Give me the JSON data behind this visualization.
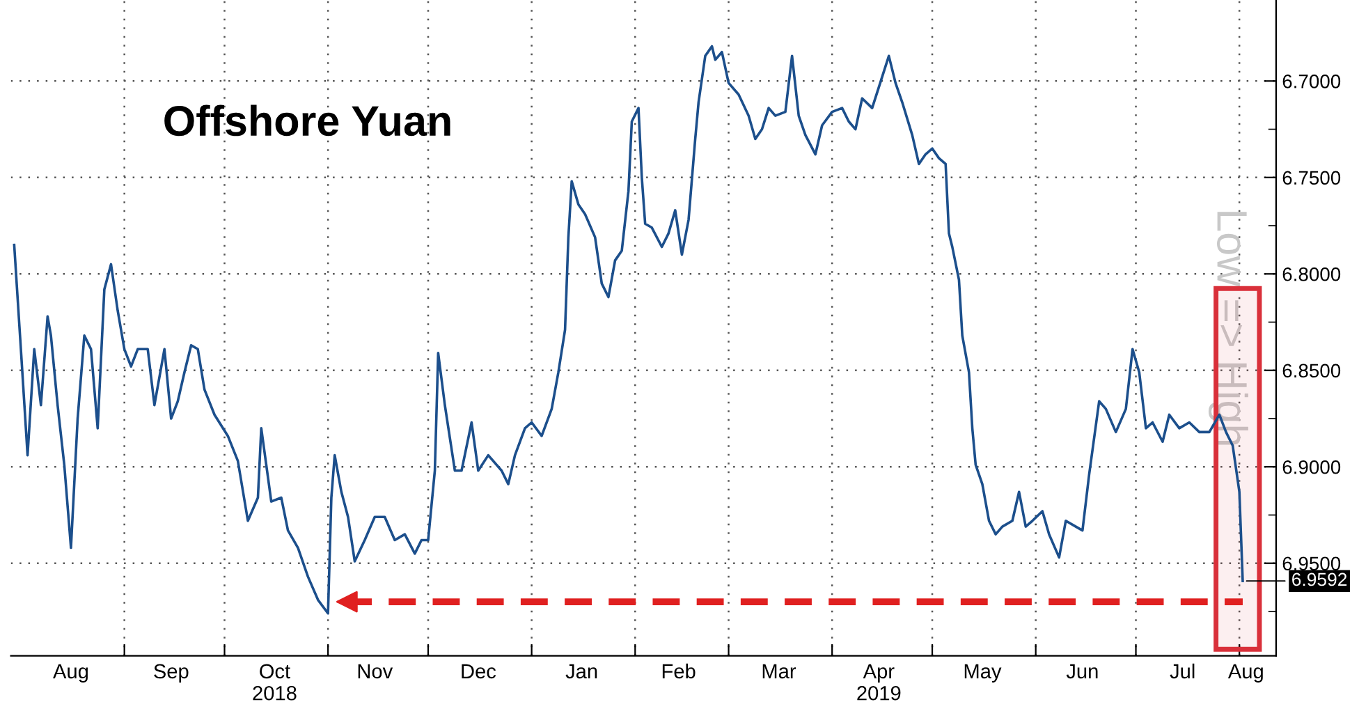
{
  "chart_data": {
    "type": "line",
    "title": "Offshore Yuan",
    "ylabel": "Low => High",
    "x": [
      "2018-07-30",
      "2018-08-01",
      "2018-08-03",
      "2018-08-05",
      "2018-08-07",
      "2018-08-09",
      "2018-08-10",
      "2018-08-12",
      "2018-08-14",
      "2018-08-16",
      "2018-08-18",
      "2018-08-20",
      "2018-08-22",
      "2018-08-24",
      "2018-08-26",
      "2018-08-28",
      "2018-08-30",
      "2018-09-01",
      "2018-09-03",
      "2018-09-05",
      "2018-09-08",
      "2018-09-10",
      "2018-09-13",
      "2018-09-15",
      "2018-09-17",
      "2018-09-19",
      "2018-09-21",
      "2018-09-23",
      "2018-09-25",
      "2018-09-28",
      "2018-10-02",
      "2018-10-05",
      "2018-10-08",
      "2018-10-11",
      "2018-10-12",
      "2018-10-15",
      "2018-10-18",
      "2018-10-20",
      "2018-10-23",
      "2018-10-26",
      "2018-10-29",
      "2018-11-01",
      "2018-11-02",
      "2018-11-03",
      "2018-11-05",
      "2018-11-07",
      "2018-11-09",
      "2018-11-12",
      "2018-11-15",
      "2018-11-18",
      "2018-11-21",
      "2018-11-24",
      "2018-11-27",
      "2018-11-29",
      "2018-12-01",
      "2018-12-03",
      "2018-12-04",
      "2018-12-06",
      "2018-12-09",
      "2018-12-11",
      "2018-12-14",
      "2018-12-16",
      "2018-12-19",
      "2018-12-23",
      "2018-12-25",
      "2018-12-27",
      "2018-12-30",
      "2019-01-01",
      "2019-01-04",
      "2019-01-07",
      "2019-01-09",
      "2019-01-11",
      "2019-01-12",
      "2019-01-13",
      "2019-01-15",
      "2019-01-17",
      "2019-01-20",
      "2019-01-22",
      "2019-01-24",
      "2019-01-26",
      "2019-01-28",
      "2019-01-30",
      "2019-01-31",
      "2019-02-02",
      "2019-02-03",
      "2019-02-04",
      "2019-02-06",
      "2019-02-09",
      "2019-02-11",
      "2019-02-13",
      "2019-02-15",
      "2019-02-17",
      "2019-02-19",
      "2019-02-20",
      "2019-02-22",
      "2019-02-24",
      "2019-02-25",
      "2019-02-27",
      "2019-03-01",
      "2019-03-04",
      "2019-03-07",
      "2019-03-09",
      "2019-03-11",
      "2019-03-13",
      "2019-03-15",
      "2019-03-18",
      "2019-03-20",
      "2019-03-22",
      "2019-03-24",
      "2019-03-27",
      "2019-03-29",
      "2019-04-01",
      "2019-04-04",
      "2019-04-06",
      "2019-04-08",
      "2019-04-10",
      "2019-04-13",
      "2019-04-18",
      "2019-04-20",
      "2019-04-22",
      "2019-04-25",
      "2019-04-27",
      "2019-04-29",
      "2019-05-01",
      "2019-05-03",
      "2019-05-05",
      "2019-05-06",
      "2019-05-07",
      "2019-05-09",
      "2019-05-10",
      "2019-05-12",
      "2019-05-13",
      "2019-05-14",
      "2019-05-16",
      "2019-05-18",
      "2019-05-20",
      "2019-05-22",
      "2019-05-25",
      "2019-05-27",
      "2019-05-29",
      "2019-05-31",
      "2019-06-03",
      "2019-06-05",
      "2019-06-08",
      "2019-06-10",
      "2019-06-13",
      "2019-06-15",
      "2019-06-17",
      "2019-06-20",
      "2019-06-22",
      "2019-06-25",
      "2019-06-28",
      "2019-06-30",
      "2019-07-02",
      "2019-07-04",
      "2019-07-06",
      "2019-07-09",
      "2019-07-11",
      "2019-07-14",
      "2019-07-17",
      "2019-07-20",
      "2019-07-23",
      "2019-07-26",
      "2019-07-28",
      "2019-07-30",
      "2019-08-01",
      "2019-08-02"
    ],
    "series": [
      {
        "color": "#1c4f8c",
        "values": [
          6.785,
          6.839,
          6.894,
          6.839,
          6.868,
          6.822,
          6.832,
          6.868,
          6.899,
          6.942,
          6.875,
          6.832,
          6.839,
          6.88,
          6.808,
          6.795,
          6.819,
          6.839,
          6.848,
          6.839,
          6.839,
          6.868,
          6.839,
          6.875,
          6.866,
          6.851,
          6.837,
          6.839,
          6.86,
          6.873,
          6.884,
          6.897,
          6.928,
          6.916,
          6.88,
          6.918,
          6.916,
          6.933,
          6.942,
          6.957,
          6.969,
          6.976,
          6.916,
          6.894,
          6.913,
          6.926,
          6.949,
          6.938,
          6.926,
          6.926,
          6.938,
          6.935,
          6.945,
          6.938,
          6.938,
          6.902,
          6.841,
          6.868,
          6.902,
          6.902,
          6.877,
          6.902,
          6.894,
          6.902,
          6.909,
          6.894,
          6.88,
          6.877,
          6.884,
          6.87,
          6.851,
          6.829,
          6.781,
          6.752,
          6.764,
          6.769,
          6.781,
          6.805,
          6.812,
          6.793,
          6.788,
          6.757,
          6.721,
          6.714,
          6.75,
          6.774,
          6.776,
          6.786,
          6.779,
          6.767,
          6.79,
          6.772,
          6.73,
          6.711,
          6.687,
          6.682,
          6.689,
          6.685,
          6.701,
          6.707,
          6.718,
          6.73,
          6.725,
          6.714,
          6.718,
          6.716,
          6.687,
          6.718,
          6.728,
          6.738,
          6.723,
          6.716,
          6.714,
          6.721,
          6.725,
          6.709,
          6.714,
          6.687,
          6.701,
          6.711,
          6.728,
          6.743,
          6.738,
          6.735,
          6.74,
          6.743,
          6.779,
          6.786,
          6.803,
          6.832,
          6.851,
          6.88,
          6.899,
          6.909,
          6.928,
          6.935,
          6.931,
          6.928,
          6.913,
          6.931,
          6.928,
          6.923,
          6.935,
          6.947,
          6.928,
          6.931,
          6.933,
          6.904,
          6.866,
          6.87,
          6.882,
          6.87,
          6.839,
          6.851,
          6.88,
          6.877,
          6.887,
          6.873,
          6.88,
          6.877,
          6.882,
          6.882,
          6.873,
          6.882,
          6.889,
          6.913,
          6.9592
        ]
      }
    ],
    "xlim": [
      "2018-07-29",
      "2019-08-12"
    ],
    "xticks": [
      {
        "value": "2018-08-16",
        "label": "Aug"
      },
      {
        "value": "2018-09-01",
        "label": null
      },
      {
        "value": "2018-09-15",
        "label": "Sep"
      },
      {
        "value": "2018-10-01",
        "label": null
      },
      {
        "value": "2018-10-16",
        "label": "Oct\n2018"
      },
      {
        "value": "2018-11-01",
        "label": null
      },
      {
        "value": "2018-11-15",
        "label": "Nov"
      },
      {
        "value": "2018-12-01",
        "label": null
      },
      {
        "value": "2018-12-16",
        "label": "Dec"
      },
      {
        "value": "2019-01-01",
        "label": null
      },
      {
        "value": "2019-01-16",
        "label": "Jan"
      },
      {
        "value": "2019-02-01",
        "label": null
      },
      {
        "value": "2019-02-14",
        "label": "Feb"
      },
      {
        "value": "2019-03-01",
        "label": null
      },
      {
        "value": "2019-03-16",
        "label": "Mar"
      },
      {
        "value": "2019-04-01",
        "label": null
      },
      {
        "value": "2019-04-15",
        "label": "Apr\n2019"
      },
      {
        "value": "2019-05-01",
        "label": null
      },
      {
        "value": "2019-05-16",
        "label": "May"
      },
      {
        "value": "2019-06-01",
        "label": null
      },
      {
        "value": "2019-06-15",
        "label": "Jun"
      },
      {
        "value": "2019-07-01",
        "label": null
      },
      {
        "value": "2019-07-15",
        "label": "Jul"
      },
      {
        "value": "2019-08-01",
        "label": null
      },
      {
        "value": "2019-08-03",
        "label": "Aug"
      }
    ],
    "ylim": [
      6.998,
      6.658
    ],
    "yticks": [
      {
        "value": 6.7,
        "label": "6.7000"
      },
      {
        "value": 6.725,
        "label": null
      },
      {
        "value": 6.75,
        "label": "6.7500"
      },
      {
        "value": 6.775,
        "label": null
      },
      {
        "value": 6.8,
        "label": "6.8000"
      },
      {
        "value": 6.825,
        "label": null
      },
      {
        "value": 6.85,
        "label": "6.8500"
      },
      {
        "value": 6.875,
        "label": null
      },
      {
        "value": 6.9,
        "label": "6.9000"
      },
      {
        "value": 6.925,
        "label": null
      },
      {
        "value": 6.95,
        "label": "6.9500"
      },
      {
        "value": 6.975,
        "label": null
      }
    ],
    "annotations": [
      {
        "text": "6.9592",
        "x": "2019-08-02",
        "y": 6.9592
      }
    ],
    "ref_lines": [
      {
        "axis": "y",
        "value": 6.97,
        "color": "#e02020",
        "line_style": "dashed"
      }
    ],
    "bands": [
      {
        "axis": "x",
        "from": "2019-07-25",
        "to": "2019-08-07",
        "color": "#d9303a"
      }
    ],
    "grid": true,
    "legend": false
  }
}
